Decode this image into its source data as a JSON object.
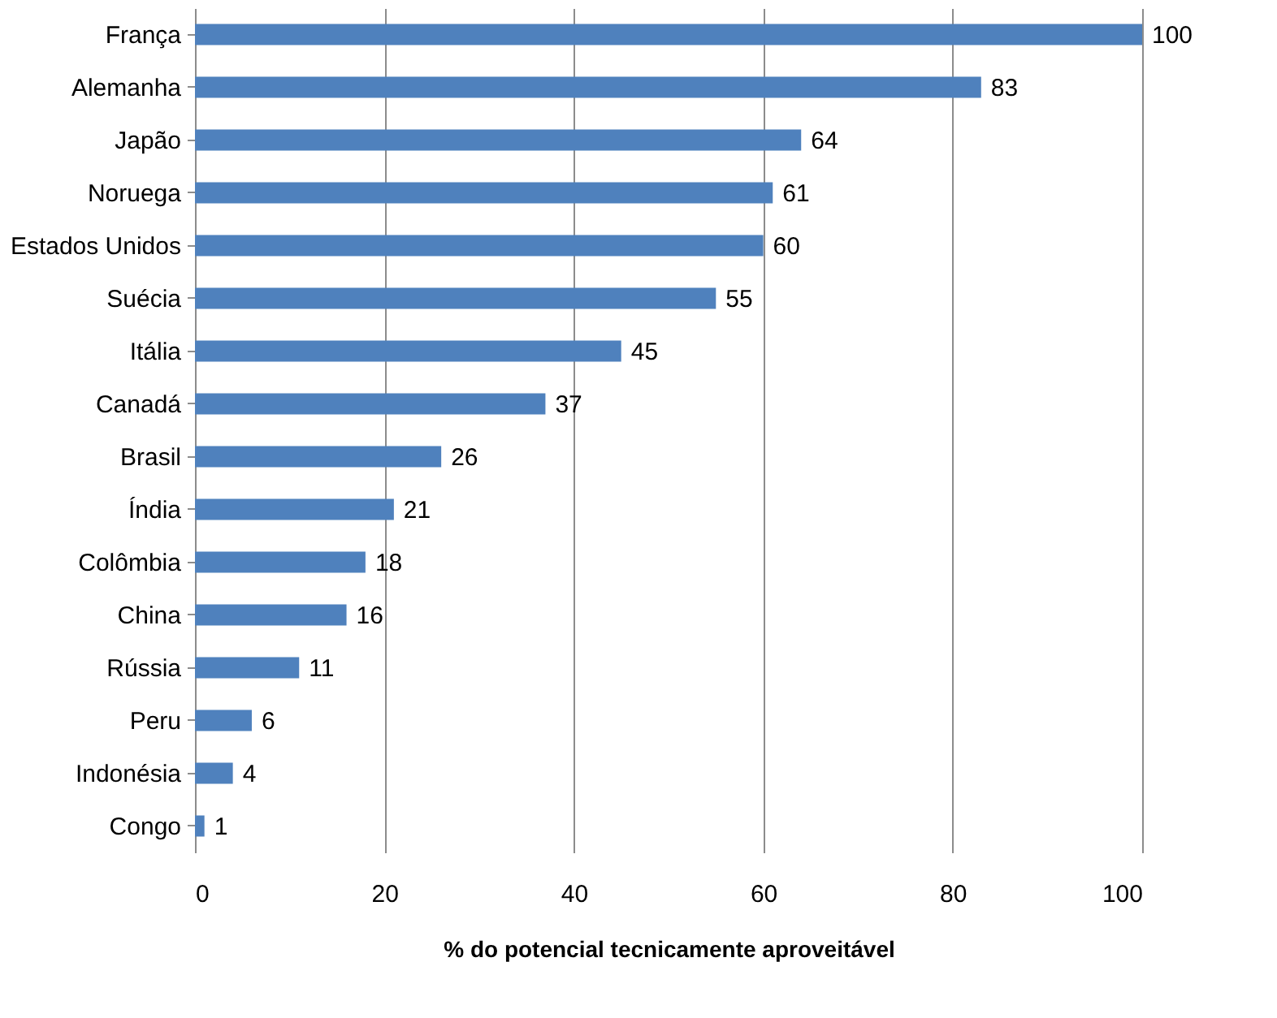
{
  "chart_data": {
    "type": "bar",
    "orientation": "horizontal",
    "xlabel": "% do potencial tecnicamente aproveitável",
    "categories": [
      "França",
      "Alemanha",
      "Japão",
      "Noruega",
      "Estados Unidos",
      "Suécia",
      "Itália",
      "Canadá",
      "Brasil",
      "Índia",
      "Colômbia",
      "China",
      "Rússia",
      "Peru",
      "Indonésia",
      "Congo"
    ],
    "values": [
      100,
      83,
      64,
      61,
      60,
      55,
      45,
      37,
      26,
      21,
      18,
      16,
      11,
      6,
      4,
      1
    ],
    "color": "#4f81bd",
    "xlim": [
      0,
      100
    ],
    "xticks": [
      0,
      20,
      40,
      60,
      80,
      100
    ],
    "grid": "x",
    "data_labels": true
  }
}
